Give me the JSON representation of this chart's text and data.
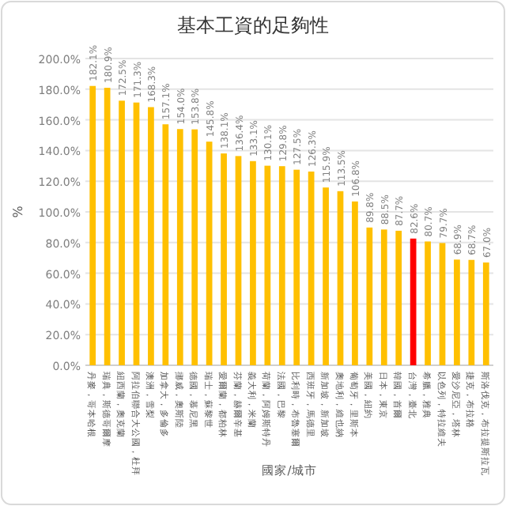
{
  "chart_data": {
    "type": "bar",
    "title": "基本工資的足夠性",
    "xlabel": "國家/城市",
    "ylabel": "%",
    "categories": [
      "丹麥，哥本哈根",
      "瑞典，斯德哥爾摩",
      "紐西蘭，奧克蘭",
      "阿拉伯聯合大公國，杜拜",
      "澳洲，雪梨",
      "加拿大，多倫多",
      "挪威，奧斯陸",
      "德國，慕尼黑",
      "瑞士，蘇黎世",
      "愛爾蘭，都柏林",
      "芬蘭，赫爾辛基",
      "義大利，米蘭",
      "荷蘭，阿姆斯特丹",
      "法國，巴黎",
      "比利時，布魯塞爾",
      "西班牙，馬德里",
      "新加坡，新加坡",
      "奧地利，維也納",
      "葡萄牙，里斯本",
      "美國，紐約",
      "日本，東京",
      "韓國，首爾",
      "台灣，臺北",
      "希臘，雅典",
      "以色列，特拉維夫",
      "愛沙尼亞，塔林",
      "捷克，布拉格",
      "斯洛伐克，布拉提斯拉瓦"
    ],
    "values": [
      182.1,
      180.9,
      172.5,
      171.3,
      168.3,
      157.1,
      154.0,
      153.8,
      145.8,
      138.1,
      136.4,
      133.1,
      130.1,
      129.8,
      127.5,
      126.3,
      115.9,
      113.5,
      106.8,
      89.8,
      88.5,
      87.7,
      82.6,
      80.7,
      79.7,
      68.9,
      68.7,
      67.0
    ],
    "value_labels": [
      "182.1%",
      "180.9%",
      "172.5%",
      "171.3%",
      "168.3%",
      "157.1%",
      "154.0%",
      "153.8%",
      "145.8%",
      "138.1%",
      "136.4%",
      "133.1%",
      "130.1%",
      "129.8%",
      "127.5%",
      "126.3%",
      "115.9%",
      "113.5%",
      "106.8%",
      "89.8%",
      "88.5%",
      "87.7%",
      "82.6%",
      "80.7%",
      "79.7%",
      "68.9%",
      "68.7%",
      "67.0%"
    ],
    "colors": [
      "#ffc000",
      "#ffc000",
      "#ffc000",
      "#ffc000",
      "#ffc000",
      "#ffc000",
      "#ffc000",
      "#ffc000",
      "#ffc000",
      "#ffc000",
      "#ffc000",
      "#ffc000",
      "#ffc000",
      "#ffc000",
      "#ffc000",
      "#ffc000",
      "#ffc000",
      "#ffc000",
      "#ffc000",
      "#ffc000",
      "#ffc000",
      "#ffc000",
      "#ff0000",
      "#ffc000",
      "#ffc000",
      "#ffc000",
      "#ffc000",
      "#ffc000"
    ],
    "ylim": [
      0,
      200
    ],
    "yticks": [
      {
        "value": 0,
        "label": "0.0%"
      },
      {
        "value": 20,
        "label": "20.0%"
      },
      {
        "value": 40,
        "label": "40.0%"
      },
      {
        "value": 60,
        "label": "60.0%"
      },
      {
        "value": 80,
        "label": "80.0%"
      },
      {
        "value": 100,
        "label": "100.0%"
      },
      {
        "value": 120,
        "label": "120.0%"
      },
      {
        "value": 140,
        "label": "140.0%"
      },
      {
        "value": 160,
        "label": "160.0%"
      },
      {
        "value": 180,
        "label": "180.0%"
      },
      {
        "value": 200,
        "label": "200.0%"
      }
    ],
    "grid": "y"
  }
}
